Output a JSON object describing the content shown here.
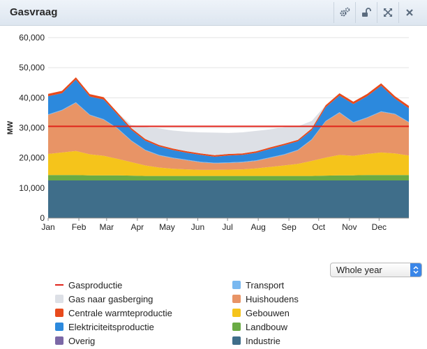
{
  "panel": {
    "title": "Gasvraag"
  },
  "controls": {
    "period_label": "Whole year"
  },
  "icons": {
    "settings": "gears-icon",
    "lock": "unlock-icon",
    "expand": "expand-icon",
    "close": "close-icon"
  },
  "chart_data": {
    "type": "area",
    "title": "",
    "xlabel": "",
    "ylabel": "MW",
    "ylim": [
      0,
      60000
    ],
    "yticks": [
      0,
      10000,
      20000,
      30000,
      40000,
      50000,
      60000
    ],
    "ytick_labels": [
      "0",
      "10,000",
      "20,000",
      "30,000",
      "40,000",
      "50,000",
      "60,000"
    ],
    "grid": true,
    "legend_position": "bottom",
    "x_weeks": [
      0,
      2,
      4,
      6,
      8,
      10,
      12,
      14,
      16,
      18,
      20,
      22,
      24,
      26,
      28,
      30,
      32,
      34,
      36,
      38,
      40,
      42,
      44,
      46,
      48,
      50,
      52
    ],
    "month_labels": [
      "Jan",
      "Feb",
      "Mar",
      "Apr",
      "May",
      "Jun",
      "Jul",
      "Aug",
      "Sep",
      "Oct",
      "Nov",
      "Dec"
    ],
    "month_weeks": [
      0,
      4.43,
      8.43,
      12.86,
      17.14,
      21.57,
      25.86,
      30.29,
      34.71,
      39.0,
      43.43,
      47.71
    ],
    "series": [
      {
        "name": "Industrie",
        "color": "#3f6e8a",
        "values": [
          12500,
          12500,
          12500,
          12500,
          12500,
          12500,
          12500,
          12500,
          12500,
          12500,
          12500,
          12500,
          12500,
          12500,
          12500,
          12500,
          12500,
          12500,
          12500,
          12500,
          12500,
          12500,
          12500,
          12500,
          12500,
          12500,
          12500
        ]
      },
      {
        "name": "Overig",
        "color": "#7b68a6",
        "values": [
          0,
          0,
          0,
          0,
          0,
          0,
          0,
          0,
          0,
          0,
          0,
          0,
          0,
          0,
          0,
          0,
          0,
          0,
          0,
          0,
          0,
          0,
          0,
          0,
          0,
          0,
          0
        ]
      },
      {
        "name": "Landbouw",
        "color": "#6aab44",
        "values": [
          1800,
          1800,
          1800,
          1700,
          1700,
          1700,
          1600,
          1500,
          1500,
          1500,
          1500,
          1500,
          1500,
          1500,
          1500,
          1500,
          1500,
          1500,
          1500,
          1500,
          1600,
          1700,
          1700,
          1800,
          1800,
          1800,
          1800
        ]
      },
      {
        "name": "Gebouwen",
        "color": "#f5c41b",
        "values": [
          7000,
          7500,
          8000,
          7000,
          6500,
          5500,
          4500,
          3500,
          2800,
          2400,
          2200,
          2000,
          2000,
          2100,
          2200,
          2500,
          3000,
          3500,
          4000,
          5000,
          6000,
          6800,
          6500,
          7000,
          7500,
          7200,
          6500
        ]
      },
      {
        "name": "Huishoudens",
        "color": "#e89466",
        "values": [
          13000,
          14000,
          16000,
          13000,
          12000,
          10000,
          7000,
          5000,
          4000,
          3500,
          3000,
          2500,
          2200,
          2200,
          2300,
          2500,
          3000,
          3500,
          4500,
          7000,
          12000,
          14000,
          11000,
          12000,
          13500,
          13000,
          11000
        ]
      },
      {
        "name": "Transport",
        "color": "#79b8f0",
        "values": [
          200,
          200,
          200,
          200,
          200,
          200,
          200,
          200,
          200,
          200,
          200,
          200,
          200,
          200,
          200,
          200,
          200,
          200,
          200,
          200,
          200,
          200,
          200,
          200,
          200,
          200,
          200
        ]
      },
      {
        "name": "Elektriciteitsproductie",
        "color": "#2c89dd",
        "values": [
          6000,
          5500,
          7500,
          6000,
          6500,
          4500,
          3500,
          3000,
          2800,
          2500,
          2300,
          2300,
          2000,
          2300,
          2300,
          2500,
          2800,
          3000,
          2800,
          3000,
          4500,
          5500,
          6000,
          7000,
          8500,
          5000,
          4500
        ]
      },
      {
        "name": "Centrale warmteproductie",
        "color": "#e84a1c",
        "values": [
          800,
          800,
          800,
          800,
          800,
          700,
          600,
          600,
          500,
          500,
          500,
          500,
          500,
          500,
          500,
          500,
          500,
          500,
          500,
          600,
          700,
          800,
          800,
          800,
          800,
          800,
          800
        ]
      },
      {
        "name": "Gas naar gasberging",
        "color": "#dde0e6",
        "values": [
          0,
          0,
          0,
          0,
          0,
          0,
          1000,
          4000,
          5500,
          6000,
          6500,
          7000,
          7500,
          7000,
          7000,
          6800,
          6000,
          5500,
          4500,
          2500,
          0,
          0,
          0,
          0,
          0,
          0,
          0
        ]
      }
    ],
    "gasproductie": {
      "name": "Gasproductie",
      "color": "#e0241b",
      "value": 30500
    }
  },
  "legend": {
    "items": [
      {
        "label": "Gasproductie",
        "color": "#e0241b",
        "style": "line"
      },
      {
        "label": "Transport",
        "color": "#79b8f0",
        "style": "box"
      },
      {
        "label": "Gas naar gasberging",
        "color": "#dde0e6",
        "style": "box"
      },
      {
        "label": "Huishoudens",
        "color": "#e89466",
        "style": "box"
      },
      {
        "label": "Centrale warmteproductie",
        "color": "#e84a1c",
        "style": "box"
      },
      {
        "label": "Gebouwen",
        "color": "#f5c41b",
        "style": "box"
      },
      {
        "label": "Elektriciteitsproductie",
        "color": "#2c89dd",
        "style": "box"
      },
      {
        "label": "Landbouw",
        "color": "#6aab44",
        "style": "box"
      },
      {
        "label": "Overig",
        "color": "#7b68a6",
        "style": "box"
      },
      {
        "label": "Industrie",
        "color": "#3f6e8a",
        "style": "box"
      }
    ]
  }
}
